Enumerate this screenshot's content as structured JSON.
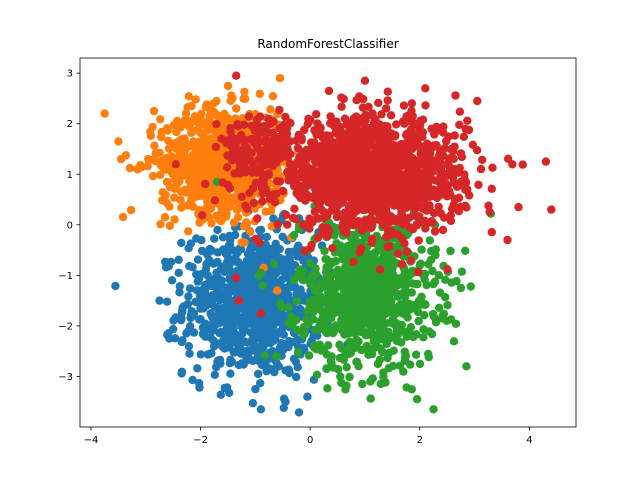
{
  "chart_data": {
    "type": "scatter",
    "title": "RandomForestClassifier",
    "xlabel": "",
    "ylabel": "",
    "xlim": [
      -4.2,
      4.85
    ],
    "ylim": [
      -4.0,
      3.3
    ],
    "xticks": [
      -4,
      -2,
      0,
      2,
      4
    ],
    "xtick_labels": [
      "−4",
      "−2",
      "0",
      "2",
      "4"
    ],
    "yticks": [
      -3,
      -2,
      -1,
      0,
      1,
      2,
      3
    ],
    "ytick_labels": [
      "−3",
      "−2",
      "−1",
      "0",
      "1",
      "2",
      "3"
    ],
    "grid": false,
    "legend": "none",
    "series": [
      {
        "color": "#1f77b4",
        "clusters": [
          {
            "cx": -1.05,
            "cy": -1.55,
            "sx": 0.62,
            "sy": 0.72,
            "n": 900
          }
        ],
        "points": [
          {
            "x": -2.75,
            "y": -1.5
          },
          {
            "x": -2.2,
            "y": -2.55
          },
          {
            "x": -1.0,
            "y": -3.25
          },
          {
            "x": -0.9,
            "y": -3.65
          },
          {
            "x": -0.45,
            "y": -3.5
          },
          {
            "x": -0.05,
            "y": -3.4
          },
          {
            "x": 0.3,
            "y": -2.85
          },
          {
            "x": -2.4,
            "y": -0.95
          },
          {
            "x": -0.15,
            "y": -0.1
          }
        ]
      },
      {
        "color": "#ff7f0e",
        "clusters": [
          {
            "cx": -1.55,
            "cy": 1.25,
            "sx": 0.58,
            "sy": 0.52,
            "n": 900
          }
        ],
        "points": [
          {
            "x": -3.75,
            "y": 2.2
          },
          {
            "x": -3.5,
            "y": 1.65
          },
          {
            "x": -3.45,
            "y": 1.3
          },
          {
            "x": -2.85,
            "y": 2.25
          },
          {
            "x": -0.55,
            "y": 2.9
          },
          {
            "x": -1.35,
            "y": 2.3
          },
          {
            "x": -2.65,
            "y": 0.15
          },
          {
            "x": -1.2,
            "y": -0.35
          },
          {
            "x": -0.6,
            "y": -1.3
          },
          {
            "x": -0.85,
            "y": -0.85
          },
          {
            "x": -1.25,
            "y": -0.35
          }
        ]
      },
      {
        "color": "#2ca02c",
        "clusters": [
          {
            "cx": 1.05,
            "cy": -1.35,
            "sx": 0.62,
            "sy": 0.72,
            "n": 900
          }
        ],
        "points": [
          {
            "x": 2.85,
            "y": -2.8
          },
          {
            "x": 2.25,
            "y": -3.65
          },
          {
            "x": 1.95,
            "y": -3.45
          },
          {
            "x": 0.95,
            "y": -3.15
          },
          {
            "x": 2.75,
            "y": -1.25
          },
          {
            "x": -1.7,
            "y": 0.85
          },
          {
            "x": -0.9,
            "y": -0.95
          },
          {
            "x": -0.55,
            "y": -1.55
          },
          {
            "x": 0.55,
            "y": -3.0
          }
        ]
      },
      {
        "color": "#d62728",
        "clusters": [
          {
            "cx": 1.1,
            "cy": 1.0,
            "sx": 0.85,
            "sy": 0.55,
            "n": 1400
          },
          {
            "cx": -1.0,
            "cy": 1.5,
            "sx": 0.35,
            "sy": 0.35,
            "n": 120
          }
        ],
        "points": [
          {
            "x": 4.3,
            "y": 1.25
          },
          {
            "x": 4.4,
            "y": 0.3
          },
          {
            "x": 3.8,
            "y": 0.35
          },
          {
            "x": 3.6,
            "y": -0.3
          },
          {
            "x": -1.35,
            "y": 2.95
          },
          {
            "x": -1.35,
            "y": -1.05
          },
          {
            "x": -1.3,
            "y": -1.5
          },
          {
            "x": -0.9,
            "y": -1.75
          },
          {
            "x": -2.45,
            "y": 1.2
          },
          {
            "x": 2.1,
            "y": 2.7
          },
          {
            "x": 3.05,
            "y": 2.45
          },
          {
            "x": 1.0,
            "y": 2.85
          }
        ]
      }
    ]
  }
}
